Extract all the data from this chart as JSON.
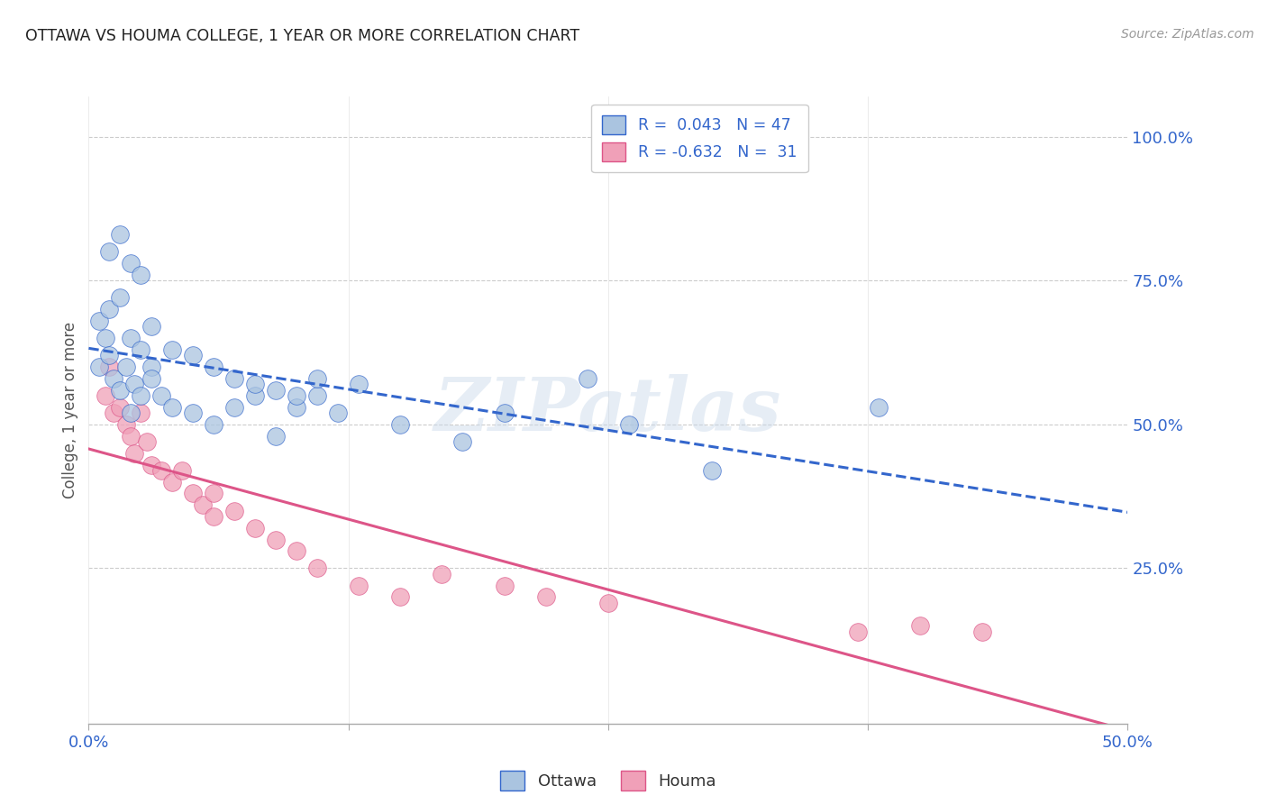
{
  "title": "OTTAWA VS HOUMA COLLEGE, 1 YEAR OR MORE CORRELATION CHART",
  "source": "Source: ZipAtlas.com",
  "ylabel": "College, 1 year or more",
  "xlim": [
    0.0,
    0.5
  ],
  "ylim": [
    -0.02,
    1.07
  ],
  "xtick_vals": [
    0.0,
    0.125,
    0.25,
    0.375,
    0.5
  ],
  "ytick_labels": [
    "25.0%",
    "50.0%",
    "75.0%",
    "100.0%"
  ],
  "ytick_vals": [
    0.25,
    0.5,
    0.75,
    1.0
  ],
  "ottawa_color": "#aac4e0",
  "houma_color": "#f0a0b8",
  "ottawa_line_color": "#3366cc",
  "houma_line_color": "#dd5588",
  "legend_R_ottawa": "R =  0.043",
  "legend_N_ottawa": "N = 47",
  "legend_R_houma": "R = -0.632",
  "legend_N_houma": "N =  31",
  "watermark": "ZIPatlas",
  "background_color": "#ffffff",
  "grid_color": "#cccccc",
  "ottawa_scatter_x": [
    0.005,
    0.008,
    0.01,
    0.012,
    0.015,
    0.018,
    0.02,
    0.022,
    0.025,
    0.005,
    0.01,
    0.015,
    0.02,
    0.025,
    0.03,
    0.01,
    0.015,
    0.02,
    0.025,
    0.03,
    0.035,
    0.04,
    0.05,
    0.06,
    0.07,
    0.08,
    0.09,
    0.1,
    0.11,
    0.12,
    0.05,
    0.06,
    0.08,
    0.1,
    0.04,
    0.03,
    0.07,
    0.09,
    0.11,
    0.13,
    0.15,
    0.18,
    0.2,
    0.24,
    0.26,
    0.3,
    0.38
  ],
  "ottawa_scatter_y": [
    0.6,
    0.65,
    0.62,
    0.58,
    0.56,
    0.6,
    0.52,
    0.57,
    0.55,
    0.68,
    0.7,
    0.72,
    0.65,
    0.63,
    0.6,
    0.8,
    0.83,
    0.78,
    0.76,
    0.58,
    0.55,
    0.53,
    0.52,
    0.5,
    0.53,
    0.55,
    0.48,
    0.53,
    0.55,
    0.52,
    0.62,
    0.6,
    0.57,
    0.55,
    0.63,
    0.67,
    0.58,
    0.56,
    0.58,
    0.57,
    0.5,
    0.47,
    0.52,
    0.58,
    0.5,
    0.42,
    0.53
  ],
  "houma_scatter_x": [
    0.008,
    0.01,
    0.012,
    0.015,
    0.018,
    0.02,
    0.022,
    0.025,
    0.028,
    0.03,
    0.035,
    0.04,
    0.045,
    0.05,
    0.055,
    0.06,
    0.07,
    0.08,
    0.09,
    0.1,
    0.11,
    0.13,
    0.15,
    0.17,
    0.2,
    0.22,
    0.25,
    0.37,
    0.4,
    0.43,
    0.06
  ],
  "houma_scatter_y": [
    0.55,
    0.6,
    0.52,
    0.53,
    0.5,
    0.48,
    0.45,
    0.52,
    0.47,
    0.43,
    0.42,
    0.4,
    0.42,
    0.38,
    0.36,
    0.34,
    0.35,
    0.32,
    0.3,
    0.28,
    0.25,
    0.22,
    0.2,
    0.24,
    0.22,
    0.2,
    0.19,
    0.14,
    0.15,
    0.14,
    0.38
  ]
}
